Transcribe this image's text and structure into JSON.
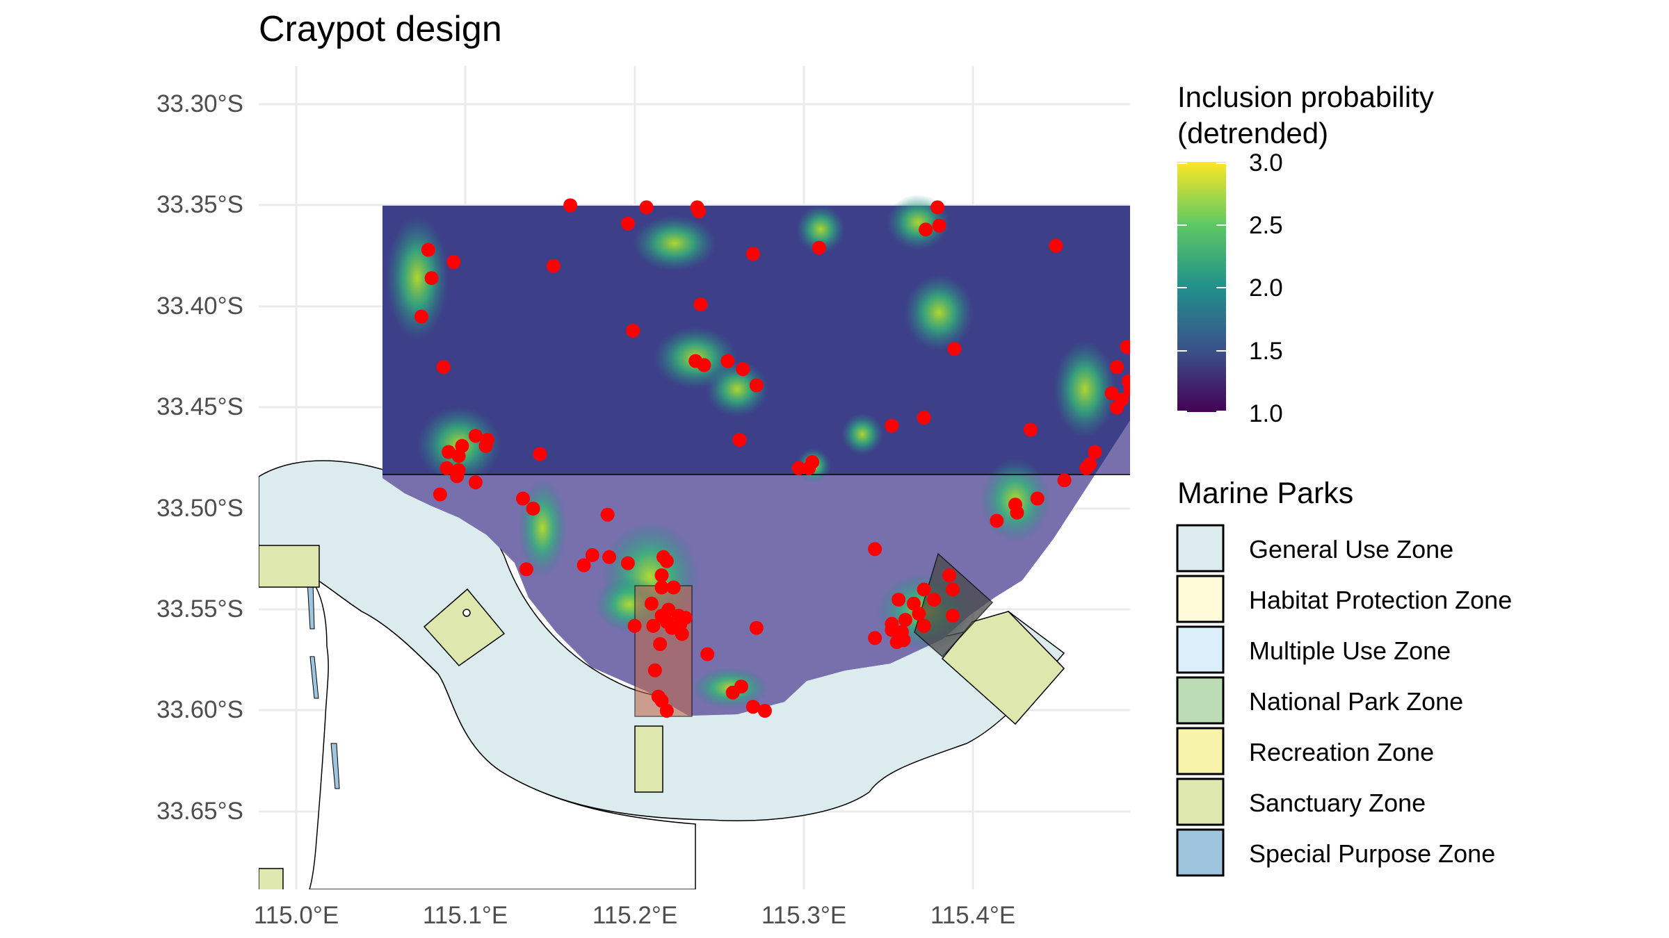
{
  "title": "Craypot design",
  "axes": {
    "x_ticks": [
      "115.0°E",
      "115.1°E",
      "115.2°E",
      "115.3°E",
      "115.4°E"
    ],
    "y_ticks": [
      "33.30°S",
      "33.35°S",
      "33.40°S",
      "33.45°S",
      "33.50°S",
      "33.55°S",
      "33.60°S",
      "33.65°S"
    ]
  },
  "colorbar": {
    "title_line1": "Inclusion probability",
    "title_line2": "(detrended)",
    "labels": [
      "3.0",
      "2.5",
      "2.0",
      "1.5",
      "1.0"
    ],
    "range": [
      1.0,
      3.0
    ],
    "palette": [
      "#440154",
      "#3b528b",
      "#21908c",
      "#5dc963",
      "#fde725"
    ]
  },
  "legend": {
    "title": "Marine Parks",
    "items": [
      {
        "label": "General Use Zone",
        "color": "#dcebee"
      },
      {
        "label": "Habitat Protection Zone",
        "color": "#fffbd8"
      },
      {
        "label": "Multiple Use Zone",
        "color": "#dbeffa"
      },
      {
        "label": "National Park Zone",
        "color": "#bcdcb6"
      },
      {
        "label": "Recreation Zone",
        "color": "#f8f3aa"
      },
      {
        "label": "Sanctuary Zone",
        "color": "#dee7ae"
      },
      {
        "label": "Special Purpose Zone",
        "color": "#9ec4de"
      }
    ]
  },
  "colors": {
    "survey_point": "#ff0000",
    "grid_line": "#ebebeb",
    "land": "#ffffff"
  },
  "map_data": {
    "lon_range": [
      114.99,
      115.49
    ],
    "lat_range": [
      33.28,
      33.69
    ],
    "sample_points": [
      [
        115.162,
        33.35
      ],
      [
        115.207,
        33.351
      ],
      [
        115.237,
        33.351
      ],
      [
        115.238,
        33.353
      ],
      [
        115.379,
        33.351
      ],
      [
        115.196,
        33.359
      ],
      [
        115.38,
        33.36
      ],
      [
        115.372,
        33.362
      ],
      [
        115.078,
        33.372
      ],
      [
        115.309,
        33.371
      ],
      [
        115.27,
        33.374
      ],
      [
        115.449,
        33.37
      ],
      [
        115.093,
        33.378
      ],
      [
        115.152,
        33.38
      ],
      [
        115.08,
        33.386
      ],
      [
        115.239,
        33.399
      ],
      [
        115.074,
        33.405
      ],
      [
        115.199,
        33.412
      ],
      [
        115.389,
        33.421
      ],
      [
        115.491,
        33.42
      ],
      [
        115.087,
        33.43
      ],
      [
        115.236,
        33.427
      ],
      [
        115.241,
        33.429
      ],
      [
        115.255,
        33.427
      ],
      [
        115.264,
        33.431
      ],
      [
        115.485,
        33.43
      ],
      [
        115.272,
        33.439
      ],
      [
        115.492,
        33.437
      ],
      [
        115.493,
        33.441
      ],
      [
        115.482,
        33.443
      ],
      [
        115.488,
        33.446
      ],
      [
        115.485,
        33.45
      ],
      [
        115.371,
        33.455
      ],
      [
        115.352,
        33.459
      ],
      [
        115.434,
        33.461
      ],
      [
        115.106,
        33.464
      ],
      [
        115.113,
        33.466
      ],
      [
        115.112,
        33.469
      ],
      [
        115.098,
        33.469
      ],
      [
        115.09,
        33.472
      ],
      [
        115.096,
        33.474
      ],
      [
        115.144,
        33.473
      ],
      [
        115.472,
        33.472
      ],
      [
        115.262,
        33.466
      ],
      [
        115.305,
        33.477
      ],
      [
        115.303,
        33.48
      ],
      [
        115.297,
        33.48
      ],
      [
        115.089,
        33.48
      ],
      [
        115.096,
        33.481
      ],
      [
        115.469,
        33.478
      ],
      [
        115.467,
        33.48
      ],
      [
        115.095,
        33.484
      ],
      [
        115.106,
        33.487
      ],
      [
        115.454,
        33.486
      ],
      [
        115.085,
        33.493
      ],
      [
        115.134,
        33.495
      ],
      [
        115.438,
        33.495
      ],
      [
        115.425,
        33.498
      ],
      [
        115.14,
        33.5
      ],
      [
        115.426,
        33.502
      ],
      [
        115.184,
        33.503
      ],
      [
        115.414,
        33.506
      ],
      [
        115.342,
        33.52
      ],
      [
        115.175,
        33.523
      ],
      [
        115.185,
        33.524
      ],
      [
        115.217,
        33.524
      ],
      [
        115.196,
        33.527
      ],
      [
        115.17,
        33.528
      ],
      [
        115.219,
        33.526
      ],
      [
        115.136,
        33.53
      ],
      [
        115.216,
        33.533
      ],
      [
        115.386,
        33.533
      ],
      [
        115.216,
        33.539
      ],
      [
        115.223,
        33.539
      ],
      [
        115.388,
        33.54
      ],
      [
        115.371,
        33.54
      ],
      [
        115.377,
        33.545
      ],
      [
        115.356,
        33.545
      ],
      [
        115.365,
        33.547
      ],
      [
        115.21,
        33.547
      ],
      [
        115.22,
        33.55
      ],
      [
        115.368,
        33.552
      ],
      [
        115.216,
        33.553
      ],
      [
        115.226,
        33.553
      ],
      [
        115.23,
        33.554
      ],
      [
        115.388,
        33.553
      ],
      [
        115.36,
        33.555
      ],
      [
        115.352,
        33.557
      ],
      [
        115.219,
        33.556
      ],
      [
        115.227,
        33.557
      ],
      [
        115.2,
        33.558
      ],
      [
        115.371,
        33.558
      ],
      [
        115.211,
        33.558
      ],
      [
        115.222,
        33.559
      ],
      [
        115.272,
        33.559
      ],
      [
        115.352,
        33.56
      ],
      [
        115.358,
        33.561
      ],
      [
        115.228,
        33.562
      ],
      [
        115.342,
        33.564
      ],
      [
        115.359,
        33.565
      ],
      [
        115.355,
        33.566
      ],
      [
        115.215,
        33.567
      ],
      [
        115.243,
        33.572
      ],
      [
        115.212,
        33.58
      ],
      [
        115.263,
        33.588
      ],
      [
        115.258,
        33.591
      ],
      [
        115.214,
        33.593
      ],
      [
        115.216,
        33.595
      ],
      [
        115.27,
        33.598
      ],
      [
        115.277,
        33.6
      ],
      [
        115.219,
        33.6
      ]
    ]
  }
}
